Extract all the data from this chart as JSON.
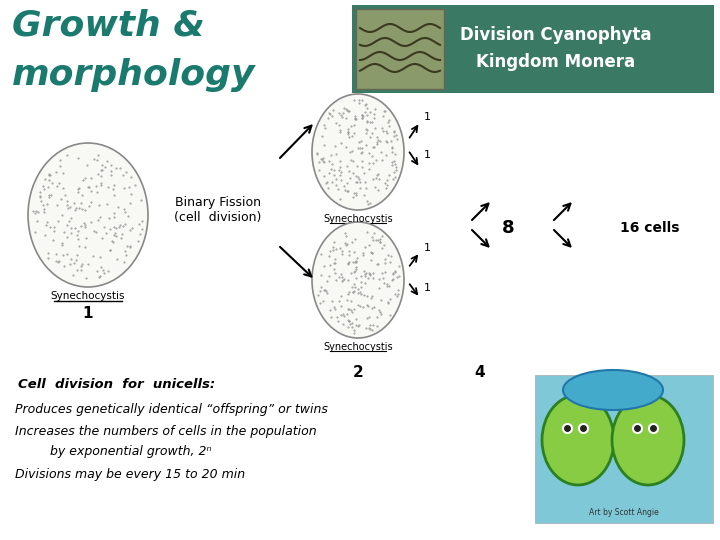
{
  "bg_color": "#ffffff",
  "title_color": "#1a7a6e",
  "header_bg": "#3a7a65",
  "header_text1": "Division Cyanophyta",
  "header_text2": "Kingdom Monera",
  "header_text_color": "#ffffff",
  "binary_fission_label": "Binary Fission\n(cell  division)",
  "synechocystis": "Synechocystis",
  "number_1": "1",
  "number_2": "2",
  "number_4": "4",
  "number_8": "8",
  "number_16": "16 cells",
  "cell_div_title": "Cell  division  for  unicells:",
  "line1": "Produces genetically identical “offspring” or twins",
  "line2": "Increases the numbers of cells in the population",
  "line3": "by exponential growth, 2ⁿ",
  "line4": "Divisions may be every 15 to 20 min",
  "arrow_color": "#000000",
  "cell_color": "#f8f8f4",
  "cell_edge_color": "#888888",
  "wave_bg": "#8a9a6a",
  "dot_color": "#999999"
}
